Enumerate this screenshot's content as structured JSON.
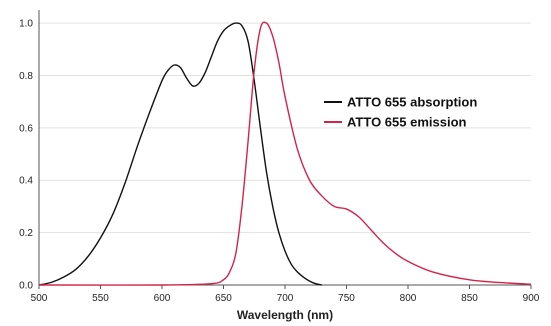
{
  "chart_data": {
    "type": "line",
    "title": "",
    "xlabel": "Wavelength (nm)",
    "ylabel": "",
    "xlim": [
      500,
      900
    ],
    "ylim": [
      0,
      1.05
    ],
    "grid": "horizontal",
    "legend_position": "right",
    "xticks": [
      500,
      550,
      600,
      650,
      700,
      750,
      800,
      850,
      900
    ],
    "yticks": [
      0.0,
      0.2,
      0.4,
      0.6,
      0.8,
      1.0
    ],
    "ytick_labels": [
      "0.0",
      "0.2",
      "0.4",
      "0.6",
      "0.8",
      "1.0"
    ],
    "series": [
      {
        "name": "ATTO 655 absorption",
        "color": "#111111",
        "x": [
          500,
          510,
          520,
          530,
          540,
          550,
          560,
          570,
          580,
          590,
          600,
          605,
          610,
          615,
          620,
          625,
          630,
          635,
          640,
          645,
          650,
          655,
          660,
          665,
          670,
          675,
          680,
          685,
          690,
          695,
          700,
          705,
          710,
          715,
          720,
          725,
          730
        ],
        "y": [
          0.0,
          0.01,
          0.03,
          0.06,
          0.11,
          0.18,
          0.27,
          0.39,
          0.53,
          0.66,
          0.78,
          0.82,
          0.84,
          0.83,
          0.79,
          0.76,
          0.77,
          0.81,
          0.87,
          0.93,
          0.97,
          0.99,
          1.0,
          0.99,
          0.93,
          0.78,
          0.6,
          0.43,
          0.3,
          0.2,
          0.13,
          0.08,
          0.05,
          0.03,
          0.015,
          0.005,
          0.0
        ]
      },
      {
        "name": "ATTO 655 emission",
        "color": "#d4234b",
        "x": [
          500,
          600,
          640,
          650,
          655,
          660,
          665,
          670,
          675,
          680,
          685,
          690,
          695,
          700,
          710,
          720,
          730,
          740,
          750,
          760,
          770,
          780,
          790,
          800,
          820,
          850,
          880,
          900
        ],
        "y": [
          0.0,
          0.0,
          0.005,
          0.02,
          0.05,
          0.12,
          0.3,
          0.55,
          0.82,
          0.98,
          1.0,
          0.95,
          0.85,
          0.72,
          0.52,
          0.4,
          0.34,
          0.3,
          0.29,
          0.26,
          0.21,
          0.16,
          0.12,
          0.09,
          0.05,
          0.02,
          0.008,
          0.003
        ]
      }
    ]
  }
}
